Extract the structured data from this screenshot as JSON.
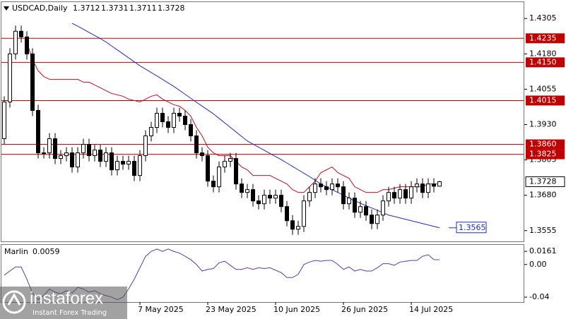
{
  "chart_data": {
    "type": "candlestick",
    "title": "USDCAD,Daily",
    "categories": [
      null,
      null,
      null,
      null,
      null,
      null,
      null,
      null,
      null,
      null,
      null,
      null,
      null,
      null,
      null,
      null,
      null,
      null,
      null,
      null,
      null,
      null,
      null,
      null,
      "7 May 2025",
      null,
      null,
      null,
      null,
      null,
      null,
      null,
      null,
      null,
      null,
      null,
      "23 May 2025",
      null,
      null,
      null,
      null,
      null,
      null,
      null,
      null,
      null,
      null,
      null,
      "10 Jun 2025",
      null,
      null,
      null,
      null,
      null,
      null,
      null,
      null,
      null,
      null,
      null,
      "26 Jun 2025",
      null,
      null,
      null,
      null,
      null,
      null,
      null,
      null,
      null,
      null,
      null,
      "14 Jul 2025",
      null,
      null,
      null,
      null,
      null
    ],
    "open": [
      1.388,
      1.401,
      1.418,
      1.426,
      1.424,
      1.418,
      1.398,
      1.383,
      1.383,
      1.388,
      1.381,
      1.382,
      1.383,
      1.378,
      1.383,
      1.386,
      1.382,
      1.384,
      1.38,
      1.383,
      1.377,
      1.38,
      1.379,
      1.38,
      1.375,
      1.382,
      1.389,
      1.392,
      1.397,
      1.394,
      1.392,
      1.397,
      1.396,
      1.393,
      1.389,
      1.383,
      1.382,
      1.373,
      1.371,
      1.378,
      1.38,
      1.381,
      1.372,
      1.369,
      1.37,
      1.366,
      1.365,
      1.368,
      1.367,
      1.368,
      1.364,
      1.359,
      1.356,
      1.357,
      1.366,
      1.369,
      1.372,
      1.371,
      1.37,
      1.372,
      1.371,
      1.365,
      1.367,
      1.362,
      1.364,
      1.361,
      1.358,
      1.361,
      1.366,
      1.369,
      1.367,
      1.37,
      1.367,
      1.371,
      1.372,
      1.369,
      1.372,
      1.3712
    ],
    "high": [
      1.403,
      1.42,
      1.428,
      1.428,
      1.426,
      1.42,
      1.4,
      1.385,
      1.39,
      1.39,
      1.384,
      1.385,
      1.385,
      1.385,
      1.388,
      1.388,
      1.386,
      1.386,
      1.385,
      1.385,
      1.382,
      1.382,
      1.382,
      1.382,
      1.384,
      1.391,
      1.394,
      1.399,
      1.399,
      1.396,
      1.399,
      1.399,
      1.398,
      1.395,
      1.391,
      1.385,
      1.384,
      1.375,
      1.38,
      1.382,
      1.383,
      1.383,
      1.374,
      1.372,
      1.372,
      1.368,
      1.37,
      1.37,
      1.37,
      1.37,
      1.366,
      1.361,
      1.359,
      1.368,
      1.371,
      1.374,
      1.374,
      1.373,
      1.374,
      1.374,
      1.373,
      1.369,
      1.369,
      1.366,
      1.366,
      1.363,
      1.363,
      1.368,
      1.371,
      1.371,
      1.372,
      1.372,
      1.373,
      1.374,
      1.374,
      1.374,
      1.374,
      1.3731
    ],
    "low": [
      1.386,
      1.399,
      1.416,
      1.422,
      1.416,
      1.396,
      1.381,
      1.381,
      1.381,
      1.379,
      1.379,
      1.38,
      1.376,
      1.376,
      1.381,
      1.38,
      1.38,
      1.378,
      1.378,
      1.375,
      1.375,
      1.377,
      1.377,
      1.373,
      1.373,
      1.38,
      1.387,
      1.39,
      1.392,
      1.39,
      1.39,
      1.394,
      1.391,
      1.387,
      1.381,
      1.38,
      1.371,
      1.369,
      1.369,
      1.376,
      1.378,
      1.37,
      1.367,
      1.367,
      1.364,
      1.363,
      1.363,
      1.365,
      1.365,
      1.362,
      1.357,
      1.354,
      1.354,
      1.355,
      1.364,
      1.367,
      1.369,
      1.368,
      1.368,
      1.369,
      1.363,
      1.363,
      1.36,
      1.36,
      1.359,
      1.356,
      1.356,
      1.359,
      1.364,
      1.365,
      1.365,
      1.365,
      1.365,
      1.369,
      1.367,
      1.367,
      1.369,
      1.3711
    ],
    "close": [
      1.401,
      1.418,
      1.426,
      1.424,
      1.418,
      1.398,
      1.383,
      1.383,
      1.388,
      1.381,
      1.382,
      1.383,
      1.378,
      1.383,
      1.386,
      1.382,
      1.384,
      1.38,
      1.383,
      1.377,
      1.38,
      1.379,
      1.38,
      1.375,
      1.382,
      1.389,
      1.392,
      1.397,
      1.394,
      1.392,
      1.397,
      1.396,
      1.393,
      1.389,
      1.383,
      1.382,
      1.373,
      1.371,
      1.378,
      1.38,
      1.381,
      1.372,
      1.369,
      1.37,
      1.366,
      1.365,
      1.368,
      1.367,
      1.368,
      1.364,
      1.359,
      1.356,
      1.357,
      1.366,
      1.369,
      1.372,
      1.371,
      1.37,
      1.372,
      1.371,
      1.365,
      1.367,
      1.362,
      1.364,
      1.361,
      1.358,
      1.361,
      1.366,
      1.369,
      1.367,
      1.37,
      1.367,
      1.371,
      1.372,
      1.369,
      1.372,
      1.3712,
      1.3728
    ],
    "overlays": [
      {
        "color": "#c0101a",
        "values": [
          null,
          null,
          null,
          null,
          1.422,
          1.416,
          1.412,
          1.41,
          1.409,
          1.409,
          1.409,
          1.409,
          1.409,
          1.409,
          1.408,
          1.408,
          1.407,
          1.406,
          1.405,
          1.404,
          1.4035,
          1.403,
          1.402,
          1.4015,
          1.401,
          1.402,
          1.403,
          1.4035,
          1.402,
          1.401,
          1.4,
          1.3995,
          1.398,
          1.396,
          1.392,
          1.389,
          1.385,
          1.383,
          1.382,
          1.382,
          1.382,
          1.38,
          1.378,
          1.377,
          1.375,
          1.375,
          1.375,
          1.375,
          1.374,
          1.373,
          1.372,
          1.37,
          1.369,
          1.369,
          1.371,
          1.373,
          1.376,
          1.377,
          1.378,
          1.376,
          1.375,
          1.374,
          1.371,
          1.37,
          1.369,
          1.369,
          1.369,
          1.37,
          1.37,
          1.3705,
          1.371,
          1.371,
          1.371,
          1.371,
          1.371,
          1.372,
          1.372,
          1.372
        ]
      },
      {
        "color": "#1c2fb8",
        "values": [
          null,
          null,
          null,
          null,
          null,
          null,
          null,
          null,
          null,
          null,
          null,
          null,
          1.4288,
          1.4278,
          1.4267,
          1.4256,
          1.4245,
          1.4234,
          1.4222,
          1.4208,
          1.4194,
          1.418,
          1.4166,
          1.4152,
          1.4138,
          1.4126,
          1.4114,
          1.4102,
          1.409,
          1.4077,
          1.4065,
          1.4051,
          1.4037,
          1.4023,
          1.4009,
          1.3995,
          1.3982,
          1.3968,
          1.3952,
          1.3936,
          1.392,
          1.3904,
          1.3888,
          1.3872,
          1.3861,
          1.385,
          1.3839,
          1.3828,
          1.3817,
          1.3806,
          1.3794,
          1.3782,
          1.377,
          1.3758,
          1.3746,
          1.3733,
          1.372,
          1.371,
          1.37,
          1.369,
          1.368,
          1.367,
          1.366,
          1.3652,
          1.3643,
          1.3635,
          1.3627,
          1.3618,
          1.361,
          1.3605,
          1.36,
          1.3595,
          1.359,
          1.3585,
          1.358,
          1.3575,
          1.357,
          1.3565
        ]
      }
    ],
    "levels": [
      1.4235,
      {
        "value": 1.415,
        "label": "1.4150"
      },
      1.4015,
      {
        "value": 1.386,
        "label": "1.3860"
      },
      1.3825
    ],
    "level_color": "#c00000",
    "ylim": [
      1.3517,
      1.4363
    ],
    "yticks": [
      1.4305,
      {
        "value": 1.418,
        "label": "1.4180"
      },
      1.4055,
      {
        "value": 1.393,
        "label": "1.3930"
      },
      1.3805,
      {
        "value": 1.368,
        "label": "1.3680"
      },
      1.3555
    ],
    "indicator": {
      "title": "Marlin",
      "color": "#5a3c9c",
      "values": [
        -0.013,
        -0.008,
        -0.003,
        -0.003,
        -0.018,
        -0.035,
        -0.043,
        -0.038,
        -0.03,
        -0.034,
        -0.036,
        -0.032,
        -0.035,
        -0.028,
        -0.03,
        -0.034,
        -0.032,
        -0.036,
        -0.038,
        -0.04,
        -0.043,
        -0.04,
        -0.03,
        -0.018,
        -0.004,
        0.01,
        0.016,
        0.019,
        0.016,
        0.019,
        0.016,
        0.014,
        0.01,
        0.006,
        0.0,
        -0.008,
        -0.006,
        -0.005,
        0.002,
        0.004,
        -0.001,
        -0.006,
        -0.006,
        -0.004,
        -0.006,
        -0.004,
        -0.005,
        -0.004,
        -0.007,
        -0.01,
        -0.016,
        -0.016,
        -0.012,
        0.0,
        0.003,
        0.005,
        0.004,
        0.005,
        0.005,
        0.0,
        -0.006,
        -0.003,
        -0.008,
        -0.006,
        -0.008,
        -0.008,
        -0.004,
        0.001,
        0.001,
        -0.001,
        0.003,
        0.004,
        0.005,
        0.005,
        0.01,
        0.012,
        0.006,
        0.0059
      ],
      "ylim": [
        -0.046,
        0.024
      ],
      "yticks": [
        0.0161,
        {
          "value": 0,
          "label": "0.00"
        },
        {
          "value": -0.04,
          "label": "-0.04"
        }
      ]
    }
  },
  "watermark": {
    "brand": "instaforex",
    "slogan": "Instant Forex Trading"
  }
}
